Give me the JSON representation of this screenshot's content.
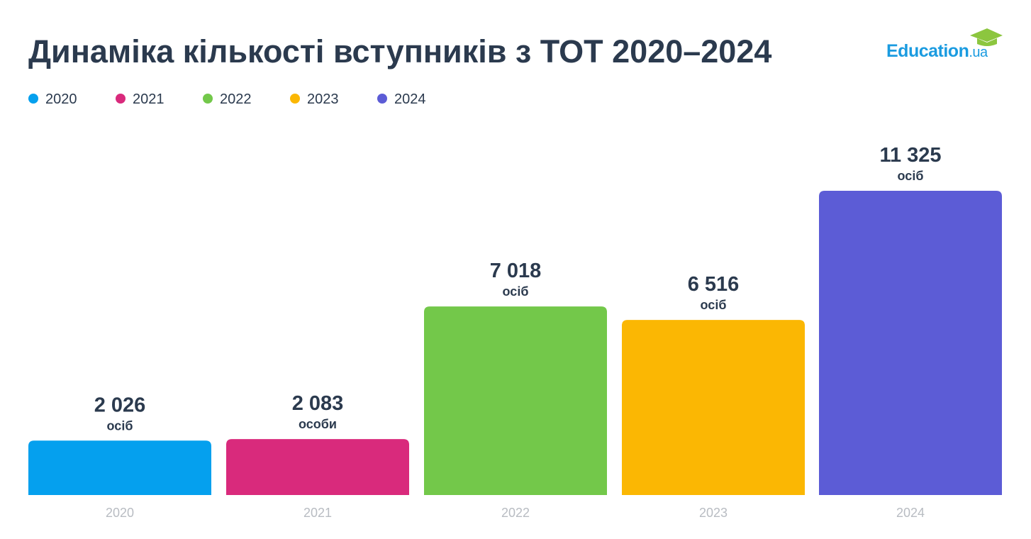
{
  "chart_data": {
    "type": "bar",
    "title": "Динаміка кількості вступників з ТОТ 2020–2024",
    "categories": [
      "2020",
      "2021",
      "2022",
      "2023",
      "2024"
    ],
    "values": [
      2026,
      2083,
      7018,
      6516,
      11325
    ],
    "value_labels": [
      "2 026",
      "2 083",
      "7 018",
      "6 516",
      "11 325"
    ],
    "value_units": [
      "осіб",
      "особи",
      "осіб",
      "осіб",
      "осіб"
    ],
    "colors": [
      "#05a0ee",
      "#d92a7c",
      "#73c84a",
      "#fbb703",
      "#5c5cd6"
    ]
  },
  "logo": {
    "name": "Education",
    "suffix": ".ua"
  }
}
